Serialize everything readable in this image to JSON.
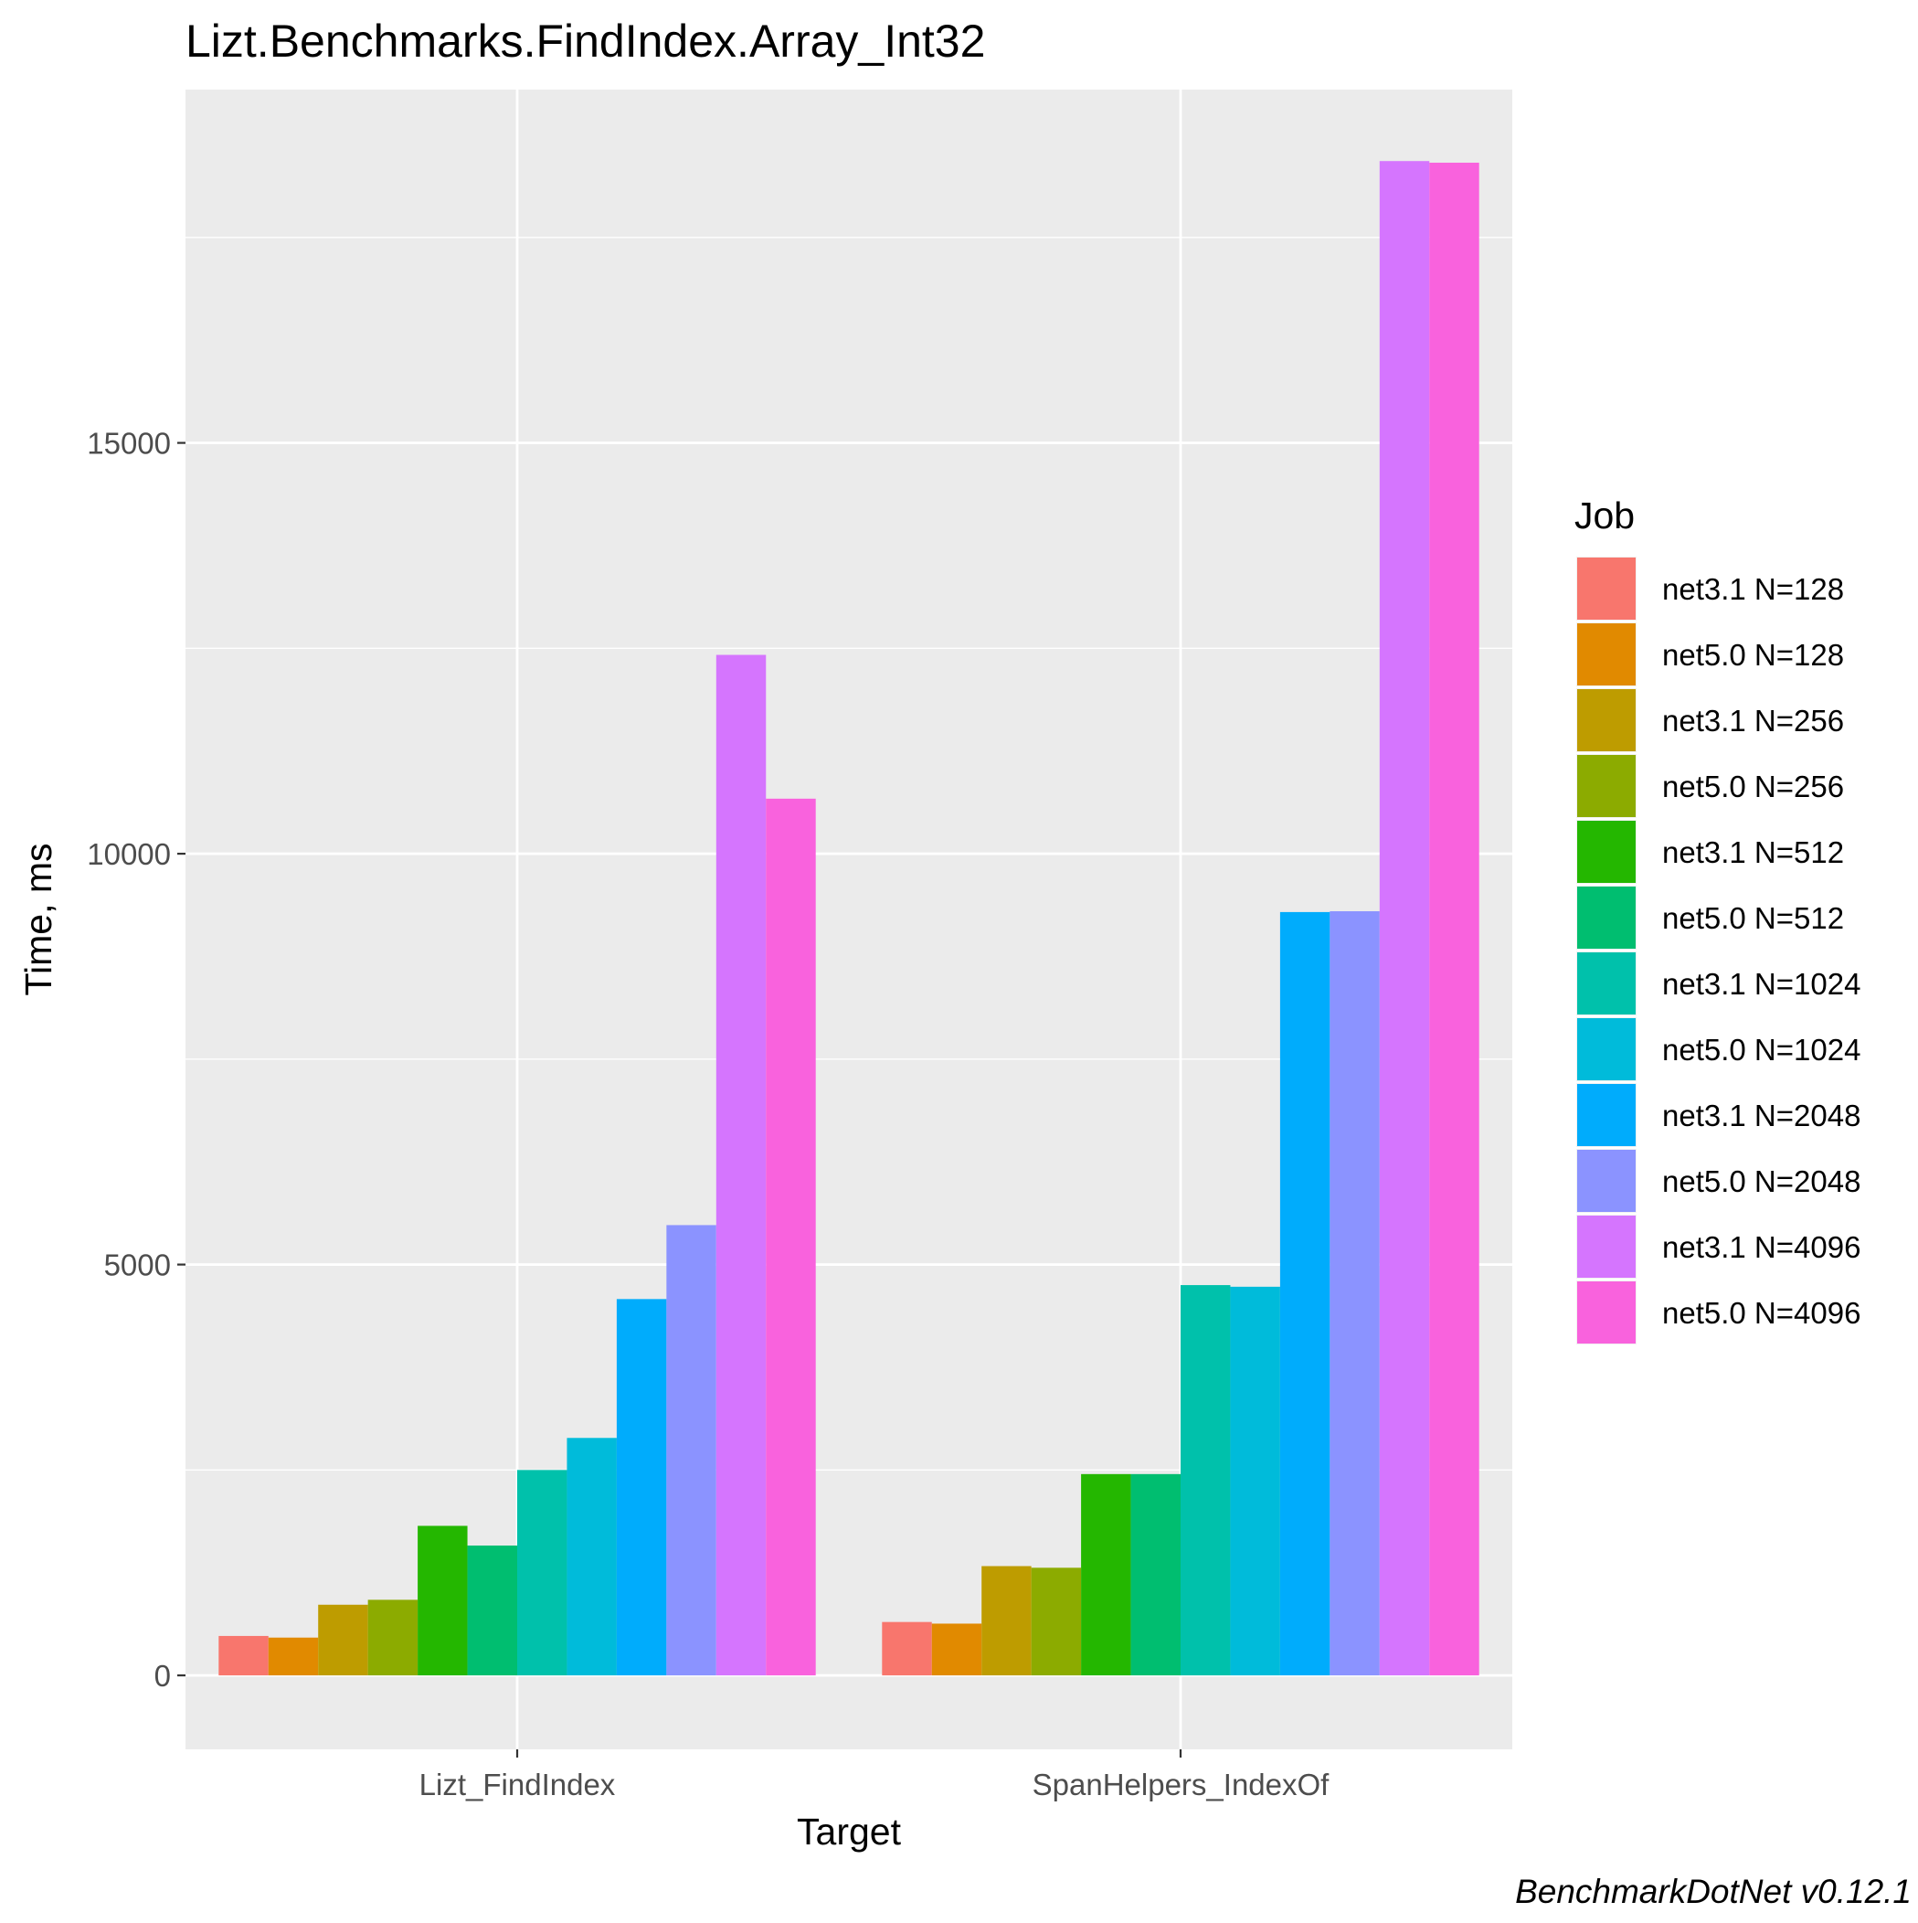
{
  "chart_data": {
    "type": "bar",
    "title": "Lizt.Benchmarks.FindIndex.Array_Int32",
    "xlabel": "Target",
    "ylabel": "Time, ms",
    "caption": "BenchmarkDotNet v0.12.1",
    "categories": [
      "Lizt_FindIndex",
      "SpanHelpers_IndexOf"
    ],
    "yticks": [
      0,
      5000,
      10000,
      15000
    ],
    "ytick_labels": [
      "0",
      "5000",
      "10000",
      "15000"
    ],
    "ylim": [
      -900,
      19300
    ],
    "grid": true,
    "legend": {
      "title": "Job",
      "position": "right"
    },
    "series": [
      {
        "name": "net3.1 N=128",
        "color": "#F8766D",
        "values": [
          480,
          650
        ]
      },
      {
        "name": "net5.0 N=128",
        "color": "#E18A00",
        "values": [
          460,
          630
        ]
      },
      {
        "name": "net3.1 N=256",
        "color": "#BE9C00",
        "values": [
          860,
          1330
        ]
      },
      {
        "name": "net5.0 N=256",
        "color": "#8CAB00",
        "values": [
          920,
          1310
        ]
      },
      {
        "name": "net3.1 N=512",
        "color": "#24B700",
        "values": [
          1820,
          2450
        ]
      },
      {
        "name": "net5.0 N=512",
        "color": "#00BE70",
        "values": [
          1580,
          2450
        ]
      },
      {
        "name": "net3.1 N=1024",
        "color": "#00C1AB",
        "values": [
          2500,
          4750
        ]
      },
      {
        "name": "net5.0 N=1024",
        "color": "#00BBDA",
        "values": [
          2890,
          4730
        ]
      },
      {
        "name": "net3.1 N=2048",
        "color": "#00ACFC",
        "values": [
          4580,
          9290
        ]
      },
      {
        "name": "net5.0 N=2048",
        "color": "#8B93FF",
        "values": [
          5480,
          9300
        ]
      },
      {
        "name": "net3.1 N=4096",
        "color": "#D575FE",
        "values": [
          12420,
          18430
        ]
      },
      {
        "name": "net5.0 N=4096",
        "color": "#F962DD",
        "values": [
          10670,
          18410
        ]
      }
    ]
  }
}
